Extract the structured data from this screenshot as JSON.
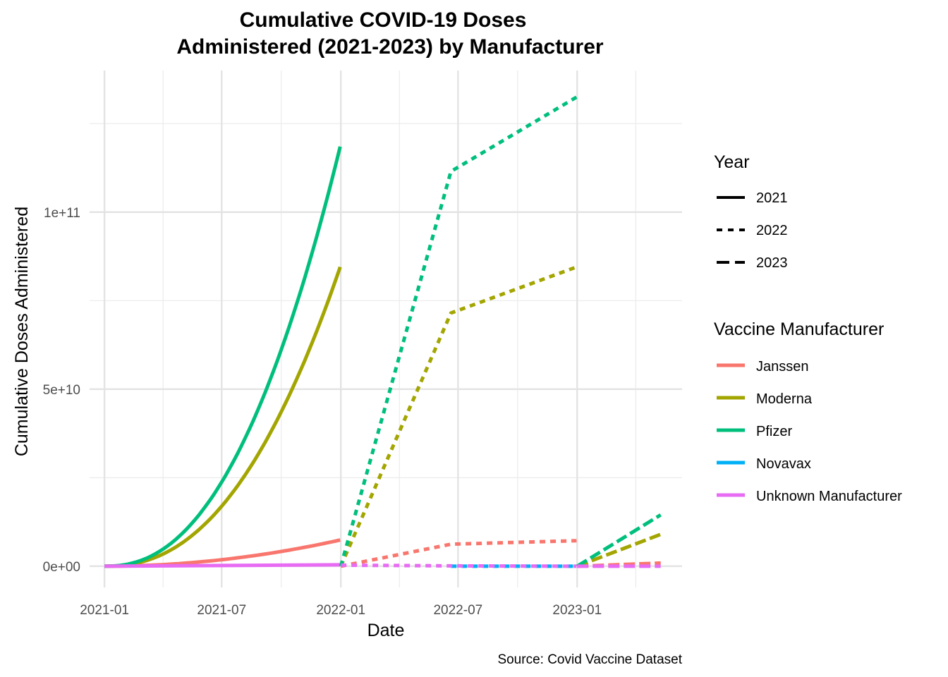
{
  "chart_data": {
    "type": "line",
    "title_lines": [
      "Cumulative COVID-19 Doses",
      "Administered (2021-2023) by Manufacturer"
    ],
    "xlabel": "Date",
    "ylabel": "Cumulative Doses Administered",
    "caption": "Source: Covid Vaccine Dataset",
    "x_ticks": [
      "2021-01",
      "2021-07",
      "2022-01",
      "2022-07",
      "2023-01"
    ],
    "x_range": [
      "2020-12-09",
      "2023-06-12"
    ],
    "y_ticks": [
      0,
      50000000000,
      100000000000
    ],
    "y_tick_labels": [
      "0e+00",
      "5e+10",
      "1e+11"
    ],
    "y_range": [
      -6000000000,
      140000000000
    ],
    "grid": true,
    "legend_position": "right",
    "legend_year": {
      "title": "Year",
      "entries": [
        {
          "label": "2021",
          "dash": "solid"
        },
        {
          "label": "2022",
          "dash": "dashed"
        },
        {
          "label": "2023",
          "dash": "longdash"
        }
      ]
    },
    "legend_manufacturer": {
      "title": "Vaccine Manufacturer",
      "entries": [
        {
          "label": "Janssen",
          "color": "#F8766D"
        },
        {
          "label": "Moderna",
          "color": "#A3A500"
        },
        {
          "label": "Pfizer",
          "color": "#00BF7D"
        },
        {
          "label": "Novavax",
          "color": "#00B0F6"
        },
        {
          "label": "Unknown Manufacturer",
          "color": "#E76BF3"
        }
      ]
    },
    "series": [
      {
        "name": "Janssen",
        "year": "2021",
        "curve": "power",
        "exp": 2,
        "points": [
          [
            "2021-01-01",
            0
          ],
          [
            "2021-12-31",
            7400000000
          ]
        ]
      },
      {
        "name": "Moderna",
        "year": "2021",
        "curve": "power",
        "exp": 2.3,
        "points": [
          [
            "2021-01-01",
            0
          ],
          [
            "2021-12-31",
            84500000000
          ]
        ]
      },
      {
        "name": "Pfizer",
        "year": "2021",
        "curve": "power",
        "exp": 2.3,
        "points": [
          [
            "2021-01-01",
            0
          ],
          [
            "2021-12-31",
            118500000000
          ]
        ]
      },
      {
        "name": "Unknown Manufacturer",
        "year": "2021",
        "curve": "linear",
        "points": [
          [
            "2021-01-01",
            0
          ],
          [
            "2021-12-31",
            400000000
          ]
        ]
      },
      {
        "name": "Janssen",
        "year": "2022",
        "curve": "linear",
        "points": [
          [
            "2022-01-01",
            0
          ],
          [
            "2022-06-20",
            6200000000
          ],
          [
            "2022-12-31",
            7200000000
          ]
        ]
      },
      {
        "name": "Moderna",
        "year": "2022",
        "curve": "linear",
        "points": [
          [
            "2022-01-01",
            0
          ],
          [
            "2022-06-20",
            71500000000
          ],
          [
            "2022-12-31",
            84500000000
          ]
        ]
      },
      {
        "name": "Pfizer",
        "year": "2022",
        "curve": "linear",
        "points": [
          [
            "2022-01-01",
            0
          ],
          [
            "2022-06-20",
            111500000000
          ],
          [
            "2022-12-31",
            132500000000
          ]
        ]
      },
      {
        "name": "Novavax",
        "year": "2022",
        "curve": "linear",
        "points": [
          [
            "2022-06-20",
            0
          ],
          [
            "2022-12-31",
            0
          ]
        ]
      },
      {
        "name": "Unknown Manufacturer",
        "year": "2022",
        "curve": "linear",
        "points": [
          [
            "2022-01-01",
            300000000
          ],
          [
            "2022-06-20",
            100000000
          ],
          [
            "2022-12-31",
            0
          ]
        ]
      },
      {
        "name": "Janssen",
        "year": "2023",
        "curve": "linear",
        "points": [
          [
            "2023-01-01",
            0
          ],
          [
            "2023-05-10",
            900000000
          ]
        ]
      },
      {
        "name": "Moderna",
        "year": "2023",
        "curve": "linear",
        "points": [
          [
            "2023-01-01",
            0
          ],
          [
            "2023-05-10",
            9000000000
          ]
        ]
      },
      {
        "name": "Pfizer",
        "year": "2023",
        "curve": "linear",
        "points": [
          [
            "2023-01-01",
            0
          ],
          [
            "2023-05-10",
            14500000000
          ]
        ]
      },
      {
        "name": "Unknown Manufacturer",
        "year": "2023",
        "curve": "linear",
        "points": [
          [
            "2023-01-01",
            0
          ],
          [
            "2023-05-10",
            0
          ]
        ]
      }
    ]
  }
}
